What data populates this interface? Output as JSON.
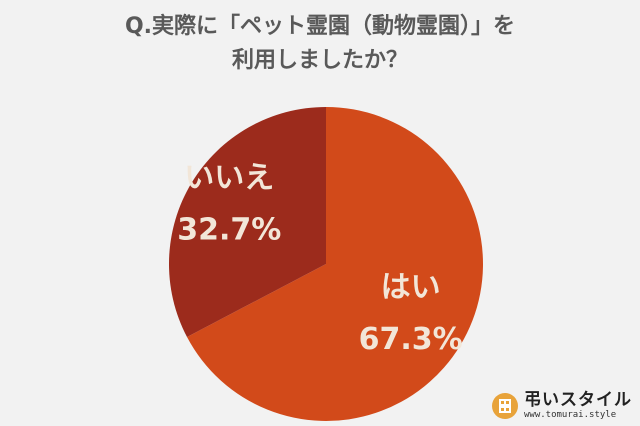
{
  "title": {
    "line1": "Q.実際に「ペット霊園（動物霊園）」を",
    "line2": "利用しましたか？"
  },
  "chart_data": {
    "type": "pie",
    "title": "Q.実際に「ペット霊園（動物霊園）」を利用しましたか？",
    "slices": [
      {
        "label": "はい",
        "value": 67.3,
        "value_text": "67.3%",
        "color": "#d24a1a"
      },
      {
        "label": "いいえ",
        "value": 32.7,
        "value_text": "32.7%",
        "color": "#9c2b1c"
      }
    ],
    "start": "12 o'clock",
    "direction": "clockwise"
  },
  "logo": {
    "main": "弔いスタイル",
    "sub": "www.tomurai.style",
    "color": "#e8a33a"
  },
  "colors": {
    "background": "#f2f2f2",
    "title": "#595959",
    "label": "#f2e6d8"
  }
}
